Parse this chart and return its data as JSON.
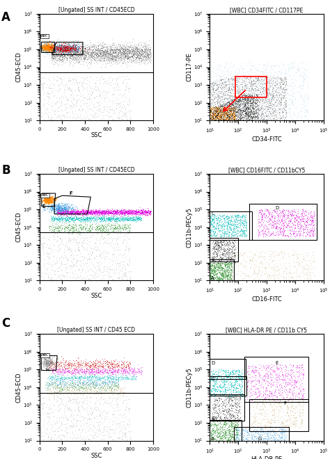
{
  "fig_width": 4.74,
  "fig_height": 6.6,
  "dpi": 100,
  "background": "#ffffff",
  "panel_titles": {
    "A_left": "[Ungated] SS INT / CD45ECD",
    "A_right": "[WBC] CD34FITC / CD117PE",
    "B_left": "[Ungated] SS INT / CD45ECD",
    "B_right": "[WBC] CD16FITC / CD11bCY5",
    "C_left": "[Ungated] SS INT / CD45 ECD",
    "C_right": "[WBC] HLA-DR PE / CD11b CY5"
  },
  "xlabels": {
    "left": "SSC",
    "A_right": "CD34-FITC",
    "B_right": "CD16-FITC",
    "C_right": "HLA-DR-PE"
  },
  "ylabels": {
    "left": "CD45-ECD",
    "B_right": "CD11b-PECy5",
    "C_right": "CD11b-PECy5",
    "A_right": "CD117-PE"
  }
}
